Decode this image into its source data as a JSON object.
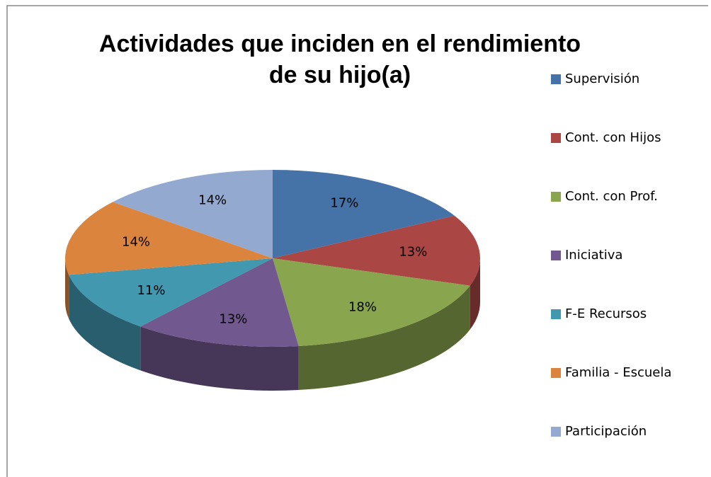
{
  "chart_data": {
    "type": "pie3d",
    "title": "Actividades que inciden en el rendimiento de su hijo(a)",
    "categories": [
      "Supervisión",
      "Cont. con Hijos",
      "Cont. con Prof.",
      "Iniciativa",
      "F-E Recursos",
      "Familia - Escuela",
      "Participación"
    ],
    "values": [
      17,
      13,
      18,
      13,
      11,
      14,
      14
    ],
    "value_labels": [
      "17%",
      "13%",
      "18%",
      "13%",
      "11%",
      "14%",
      "14%"
    ],
    "colors": [
      "#4572a7",
      "#aa4643",
      "#89a54e",
      "#71588f",
      "#4198af",
      "#db843d",
      "#93a9cf"
    ],
    "legend": "right"
  }
}
